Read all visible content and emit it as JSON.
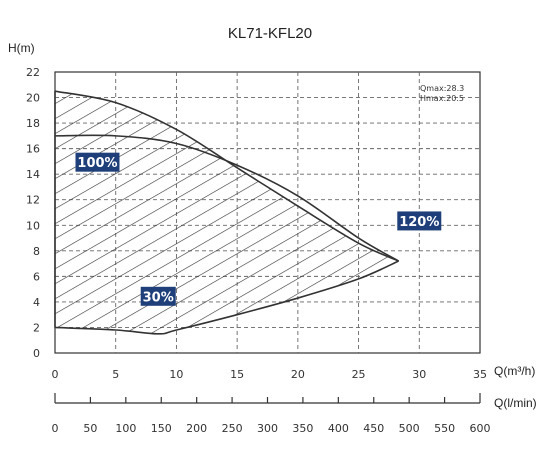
{
  "chart_data": {
    "type": "area",
    "title": "KL71-KFL20",
    "ylabel": "H(m)",
    "xlabel": "Q(m³/h)",
    "xlabel2": "Q(l/min)",
    "xlim": [
      0,
      35
    ],
    "ylim": [
      0,
      22
    ],
    "x_ticks": [
      "0",
      "5",
      "10",
      "15",
      "20",
      "25",
      "30",
      "35"
    ],
    "y_ticks": [
      "0",
      "2",
      "4",
      "6",
      "8",
      "10",
      "12",
      "14",
      "16",
      "18",
      "20",
      "22"
    ],
    "x2_ticks": [
      "0",
      "50",
      "100",
      "150",
      "200",
      "250",
      "300",
      "350",
      "400",
      "450",
      "500",
      "550",
      "600"
    ],
    "grid": true,
    "annotations": {
      "qmax": "Qmax:28.3",
      "hmax": "Hmax:20.5"
    },
    "series": [
      {
        "name": "100%",
        "x": [
          0,
          5,
          10,
          15,
          20,
          25,
          28.3
        ],
        "y": [
          20.5,
          19.6,
          17.5,
          14.5,
          11.5,
          8.6,
          7.2
        ]
      },
      {
        "name": "120%",
        "x": [
          0,
          5,
          10,
          15,
          20,
          25,
          28.3
        ],
        "y": [
          17.0,
          17.0,
          16.4,
          14.7,
          12.3,
          9.0,
          7.2
        ]
      },
      {
        "name": "30%",
        "x": [
          0,
          5,
          8.5,
          10,
          15,
          20,
          25,
          28.3
        ],
        "y": [
          2.0,
          1.8,
          1.5,
          1.8,
          3.0,
          4.3,
          5.8,
          7.2
        ]
      }
    ],
    "labels": [
      {
        "text": "100%",
        "x": 3.5,
        "y": 14.9
      },
      {
        "text": "120%",
        "x": 30.0,
        "y": 10.3
      },
      {
        "text": "30%",
        "x": 8.5,
        "y": 4.4
      }
    ]
  }
}
